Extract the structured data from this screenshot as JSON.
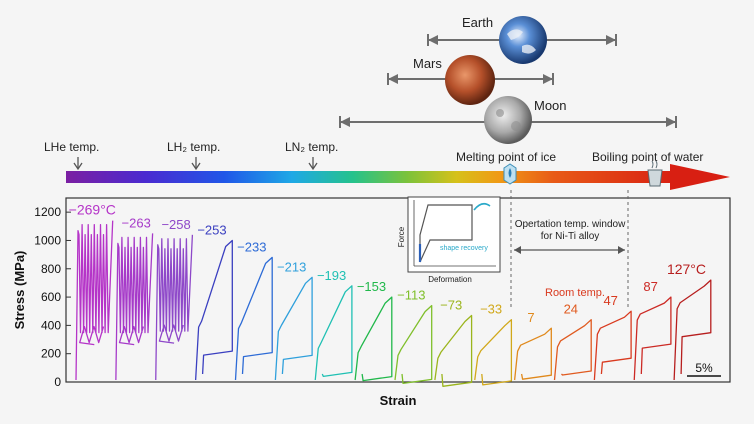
{
  "chart_data": {
    "type": "line",
    "xlabel": "Strain",
    "ylabel": "Stress (MPa)",
    "ylim": [
      0,
      1300
    ],
    "y_ticks": [
      0,
      200,
      400,
      600,
      800,
      1000,
      1200
    ],
    "scale_bar": "5%",
    "temperature_bar": {
      "markers": [
        "LHe temp.",
        "LH₂ temp.",
        "LN₂ temp.",
        "Melting point of ice",
        "Boiling point of water"
      ]
    },
    "planets": [
      {
        "name": "Earth",
        "color": "#3b6cb5"
      },
      {
        "name": "Mars",
        "color": "#b5502a"
      },
      {
        "name": "Moon",
        "color": "#9a9a9a"
      }
    ],
    "inset": {
      "xlabel": "Deformation",
      "ylabel": "Force",
      "annotation": "shape recovery"
    },
    "window_annotation": [
      "Opertation temp. window",
      "for Ni-Ti alloy"
    ],
    "room_temp_label": "Room temp.",
    "curves": [
      {
        "label": "−269°C",
        "temp": -269,
        "peak": 1140,
        "low": 420,
        "serrated": true,
        "color": "#b534c8"
      },
      {
        "label": "−263",
        "temp": -263,
        "peak": 1050,
        "low": 420,
        "serrated": true,
        "color": "#a63ac9"
      },
      {
        "label": "−258",
        "temp": -258,
        "peak": 1040,
        "low": 430,
        "serrated": true,
        "color": "#8e48c9"
      },
      {
        "label": "−253",
        "temp": -253,
        "peak": 1000,
        "low": 430,
        "serrated": false,
        "color": "#3a3fc0"
      },
      {
        "label": "−233",
        "temp": -233,
        "peak": 880,
        "low": 420,
        "serrated": false,
        "color": "#2d6bd6"
      },
      {
        "label": "−213",
        "temp": -213,
        "peak": 740,
        "low": 400,
        "serrated": false,
        "color": "#2fa0dc"
      },
      {
        "label": "−193",
        "temp": -193,
        "peak": 680,
        "low": 280,
        "serrated": false,
        "color": "#1fc0b3"
      },
      {
        "label": "−153",
        "temp": -153,
        "peak": 600,
        "low": 250,
        "serrated": false,
        "color": "#21b84b"
      },
      {
        "label": "−113",
        "temp": -113,
        "peak": 540,
        "low": 230,
        "serrated": false,
        "color": "#7fbf2a"
      },
      {
        "label": "−73",
        "temp": -73,
        "peak": 470,
        "low": 210,
        "serrated": false,
        "color": "#9bb51c"
      },
      {
        "label": "−33",
        "temp": -33,
        "peak": 440,
        "low": 220,
        "serrated": false,
        "color": "#d1a81a"
      },
      {
        "label": "7",
        "temp": 7,
        "peak": 380,
        "low": 260,
        "serrated": false,
        "color": "#e0891c"
      },
      {
        "label": "24",
        "temp": 24,
        "peak": 440,
        "low": 290,
        "serrated": false,
        "color": "#e05a1f"
      },
      {
        "label": "47",
        "temp": 47,
        "peak": 500,
        "low": 380,
        "serrated": false,
        "color": "#d93a1f"
      },
      {
        "label": "87",
        "temp": 87,
        "peak": 600,
        "low": 480,
        "serrated": false,
        "color": "#cc2a25"
      },
      {
        "label": "127°C",
        "temp": 127,
        "peak": 720,
        "low": 560,
        "serrated": false,
        "color": "#b71e1e"
      }
    ]
  }
}
